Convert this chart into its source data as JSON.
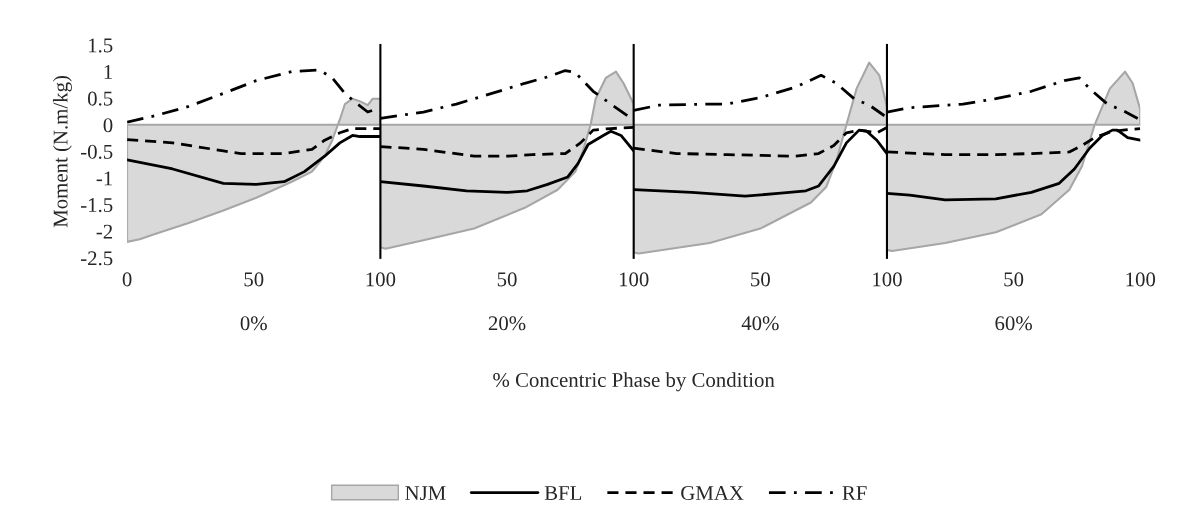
{
  "chart_data": [
    {
      "type": "line",
      "xlabel": "0%",
      "ylabel": "Moment (N.m/kg)",
      "xlim": [
        0,
        100
      ],
      "xticks": [
        0,
        50,
        100
      ],
      "ylim": [
        -2.5,
        1.5
      ],
      "yticks": [
        -2.5,
        -2,
        -1.5,
        -1,
        -0.5,
        0,
        0.5,
        1,
        1.5
      ],
      "grid": false,
      "legend": "bottom",
      "annotations": [
        "% Concentric Phase by Condition"
      ],
      "series": [
        {
          "name": "NJM",
          "type": "area",
          "color": "#d9d9d9",
          "x": [
            0,
            5,
            11,
            24,
            38,
            51,
            65,
            73,
            78,
            81,
            84,
            86,
            89,
            92,
            95,
            97,
            100
          ],
          "values": [
            -2.2,
            -2.15,
            -2.05,
            -1.85,
            -1.61,
            -1.37,
            -1.07,
            -0.88,
            -0.59,
            -0.29,
            0.1,
            0.39,
            0.49,
            0.44,
            0.37,
            0.49,
            0.49
          ]
        },
        {
          "name": "BFL",
          "color": "#000000",
          "line_style": "solid",
          "x": [
            0,
            18,
            38,
            51,
            62,
            70,
            78,
            84,
            89,
            92,
            96,
            100
          ],
          "values": [
            -0.66,
            -0.83,
            -1.1,
            -1.12,
            -1.07,
            -0.88,
            -0.59,
            -0.34,
            -0.2,
            -0.22,
            -0.22,
            -0.22
          ]
        },
        {
          "name": "GMAX",
          "color": "#000000",
          "line_style": "dashed",
          "x": [
            0,
            18,
            38,
            45,
            62,
            73,
            78,
            84,
            89,
            100
          ],
          "values": [
            -0.28,
            -0.34,
            -0.49,
            -0.54,
            -0.54,
            -0.46,
            -0.29,
            -0.15,
            -0.07,
            -0.07
          ]
        },
        {
          "name": "RF",
          "color": "#000000",
          "line_style": "dashdot",
          "x": [
            0,
            11,
            24,
            38,
            51,
            65,
            76,
            81,
            86,
            91,
            95,
            98
          ],
          "values": [
            0.05,
            0.17,
            0.34,
            0.59,
            0.83,
            1.0,
            1.03,
            0.88,
            0.59,
            0.39,
            0.24,
            0.29
          ]
        }
      ]
    },
    {
      "type": "line",
      "xlabel": "20%",
      "xlim": [
        0,
        100
      ],
      "xticks": [
        50,
        100
      ],
      "ylim": [
        -2.5,
        1.5
      ],
      "grid": false,
      "tick_labels": "x",
      "series": [
        {
          "type": "area",
          "color": "#d9d9d9",
          "x": [
            0,
            2,
            17,
            37,
            57,
            70,
            77,
            80,
            83,
            85,
            89,
            93,
            96,
            100
          ],
          "values": [
            -2.3,
            -2.33,
            -2.17,
            -1.95,
            -1.56,
            -1.22,
            -0.88,
            -0.49,
            0,
            0.49,
            0.88,
            1.0,
            0.78,
            0.39
          ]
        },
        {
          "color": "#000000",
          "line_style": "solid",
          "x": [
            0,
            17,
            34,
            50,
            58,
            66,
            74,
            78,
            82,
            88,
            91,
            95,
            100
          ],
          "values": [
            -1.07,
            -1.15,
            -1.24,
            -1.27,
            -1.24,
            -1.12,
            -0.98,
            -0.73,
            -0.37,
            -0.2,
            -0.12,
            -0.2,
            -0.49
          ]
        },
        {
          "color": "#000000",
          "line_style": "dashed",
          "x": [
            0,
            17,
            37,
            50,
            60,
            73,
            79,
            84,
            91,
            100
          ],
          "values": [
            -0.41,
            -0.46,
            -0.59,
            -0.59,
            -0.56,
            -0.54,
            -0.34,
            -0.1,
            -0.07,
            -0.05
          ]
        },
        {
          "color": "#000000",
          "line_style": "dashdot",
          "x": [
            0,
            17,
            30,
            44,
            57,
            66,
            73,
            77,
            84,
            91,
            99
          ],
          "values": [
            0.12,
            0.24,
            0.39,
            0.59,
            0.78,
            0.9,
            1.02,
            0.98,
            0.63,
            0.39,
            0.12
          ]
        }
      ]
    },
    {
      "type": "line",
      "xlabel": "40%",
      "xlim": [
        0,
        100
      ],
      "xticks": [
        50,
        100
      ],
      "ylim": [
        -2.5,
        1.5
      ],
      "grid": false,
      "tick_labels": "x",
      "series": [
        {
          "type": "area",
          "color": "#d9d9d9",
          "x": [
            0,
            2,
            30,
            50,
            70,
            76,
            80,
            84,
            88,
            93,
            97,
            100
          ],
          "values": [
            -2.4,
            -2.42,
            -2.22,
            -1.95,
            -1.46,
            -1.17,
            -0.68,
            0,
            0.68,
            1.17,
            0.93,
            0.34
          ]
        },
        {
          "color": "#000000",
          "line_style": "solid",
          "x": [
            0,
            23,
            44,
            57,
            68,
            73,
            79,
            84,
            89,
            92,
            96,
            100
          ],
          "values": [
            -1.22,
            -1.27,
            -1.34,
            -1.29,
            -1.24,
            -1.15,
            -0.78,
            -0.34,
            -0.1,
            -0.12,
            -0.29,
            -0.54
          ]
        },
        {
          "color": "#000000",
          "line_style": "dashed",
          "x": [
            0,
            17,
            37,
            64,
            73,
            79,
            84,
            89,
            96,
            100
          ],
          "values": [
            -0.44,
            -0.54,
            -0.56,
            -0.59,
            -0.54,
            -0.39,
            -0.15,
            -0.1,
            -0.15,
            -0.05
          ]
        },
        {
          "color": "#000000",
          "line_style": "dashdot",
          "x": [
            0,
            10,
            30,
            37,
            50,
            64,
            74,
            80,
            87,
            93,
            99
          ],
          "values": [
            0.27,
            0.37,
            0.39,
            0.39,
            0.51,
            0.71,
            0.93,
            0.78,
            0.49,
            0.37,
            0.17
          ]
        }
      ]
    },
    {
      "type": "line",
      "xlabel": "60%",
      "xlim": [
        0,
        100
      ],
      "xticks": [
        50,
        100
      ],
      "ylim": [
        -2.5,
        1.5
      ],
      "grid": false,
      "tick_labels": "x",
      "series": [
        {
          "type": "area",
          "color": "#d9d9d9",
          "x": [
            0,
            2,
            23,
            43,
            61,
            72,
            77,
            82,
            88,
            94,
            97,
            100
          ],
          "values": [
            -2.35,
            -2.37,
            -2.22,
            -2.02,
            -1.68,
            -1.22,
            -0.78,
            0,
            0.68,
            1.0,
            0.78,
            0.29
          ]
        },
        {
          "color": "#000000",
          "line_style": "solid",
          "x": [
            0,
            9,
            23,
            43,
            57,
            68,
            74,
            80,
            85,
            89,
            91,
            95,
            100
          ],
          "values": [
            -1.29,
            -1.32,
            -1.41,
            -1.39,
            -1.27,
            -1.1,
            -0.83,
            -0.44,
            -0.2,
            -0.1,
            -0.1,
            -0.24,
            -0.29
          ]
        },
        {
          "color": "#000000",
          "line_style": "dashed",
          "x": [
            0,
            23,
            43,
            57,
            72,
            77,
            82,
            89,
            100
          ],
          "values": [
            -0.51,
            -0.56,
            -0.56,
            -0.54,
            -0.51,
            -0.39,
            -0.24,
            -0.12,
            -0.07
          ]
        },
        {
          "color": "#000000",
          "line_style": "dashdot",
          "x": [
            0,
            9,
            30,
            43,
            57,
            70,
            76,
            80,
            87,
            93,
            99
          ],
          "values": [
            0.24,
            0.32,
            0.39,
            0.49,
            0.63,
            0.83,
            0.88,
            0.68,
            0.39,
            0.27,
            0.12
          ]
        }
      ]
    }
  ]
}
